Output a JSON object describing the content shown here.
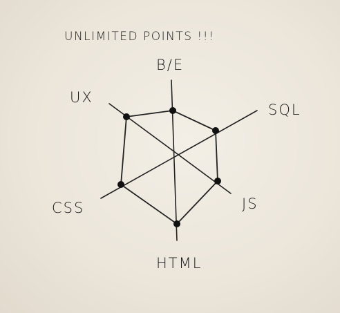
{
  "title": "UNLIMITED POINTS !!!",
  "axes": [
    {
      "key": "be",
      "label": "B/E"
    },
    {
      "key": "sql",
      "label": "SQL"
    },
    {
      "key": "js",
      "label": "JS"
    },
    {
      "key": "html",
      "label": "HTML"
    },
    {
      "key": "css",
      "label": "CSS"
    },
    {
      "key": "ux",
      "label": "UX"
    }
  ],
  "colors": {
    "paper": "#ebe5da",
    "ink": "#222222"
  }
}
